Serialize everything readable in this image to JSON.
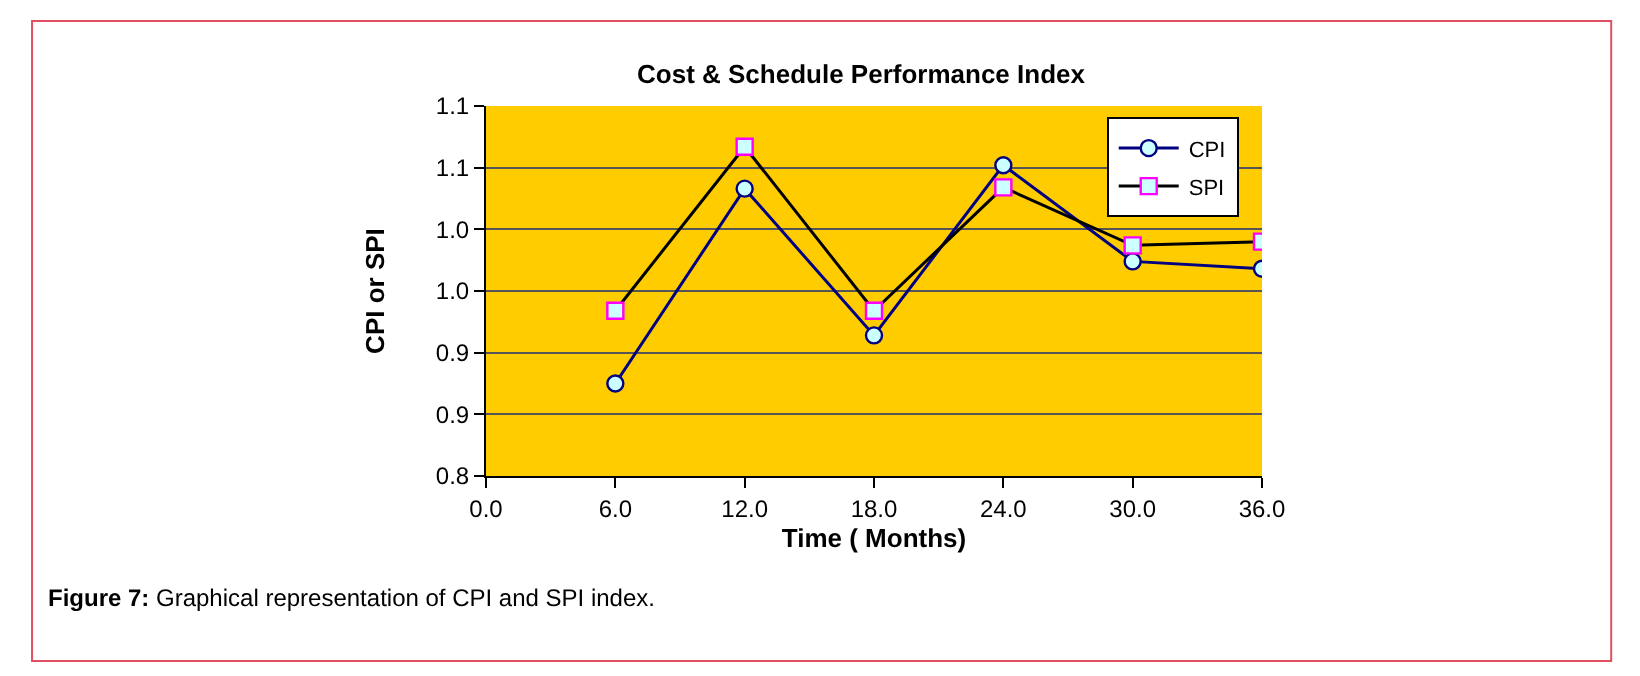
{
  "chart_data": {
    "type": "line",
    "title": "Cost & Schedule Performance Index",
    "xlabel": "Time ( Months)",
    "ylabel": "CPI or SPI",
    "x": [
      6,
      12,
      18,
      24,
      30,
      36
    ],
    "series": [
      {
        "name": "CPI",
        "color": "#000080",
        "marker": "circle",
        "values": [
          0.875,
          1.033,
          0.914,
          1.052,
          0.974,
          0.968
        ]
      },
      {
        "name": "SPI",
        "color": "#000000",
        "marker": "square",
        "values": [
          0.934,
          1.067,
          0.934,
          1.034,
          0.987,
          0.99
        ]
      }
    ],
    "xlim": [
      0,
      36
    ],
    "xticks": [
      {
        "value": 0,
        "label": "0.0"
      },
      {
        "value": 6,
        "label": "6.0"
      },
      {
        "value": 12,
        "label": "12.0"
      },
      {
        "value": 18,
        "label": "18.0"
      },
      {
        "value": 24,
        "label": "24.0"
      },
      {
        "value": 30,
        "label": "30.0"
      },
      {
        "value": 36,
        "label": "36.0"
      }
    ],
    "ylim": [
      0.8,
      1.1
    ],
    "yticks": [
      {
        "value": 0.8,
        "label": "0.8"
      },
      {
        "value": 0.85,
        "label": "0.9"
      },
      {
        "value": 0.9,
        "label": "0.9"
      },
      {
        "value": 0.95,
        "label": "1.0"
      },
      {
        "value": 1.0,
        "label": "1.0"
      },
      {
        "value": 1.05,
        "label": "1.1"
      },
      {
        "value": 1.1,
        "label": "1.1"
      }
    ],
    "grid": "y",
    "legend": "top right",
    "annotations": [
      "Figure 7: Graphical representation of CPI and SPI index."
    ]
  }
}
